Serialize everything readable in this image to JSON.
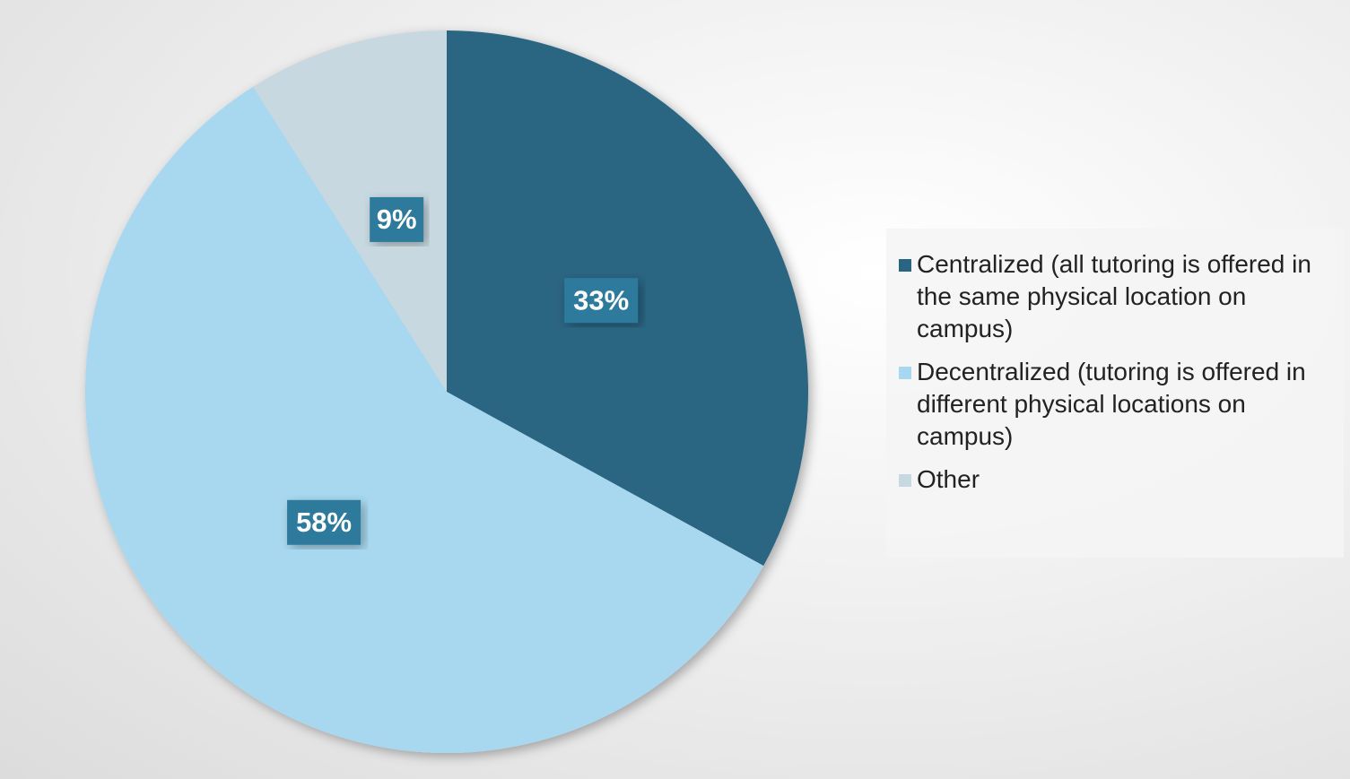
{
  "chart_data": {
    "type": "pie",
    "categories": [
      "Centralized (all tutoring is offered in the same physical location on campus)",
      "Decentralized (tutoring is offered in different physical locations on campus)",
      "Other"
    ],
    "values": [
      33,
      58,
      9
    ],
    "value_labels": [
      "33%",
      "58%",
      "9%"
    ],
    "colors": [
      "#296582",
      "#a8d8f0",
      "#c8d8e0"
    ],
    "legend": "right"
  }
}
